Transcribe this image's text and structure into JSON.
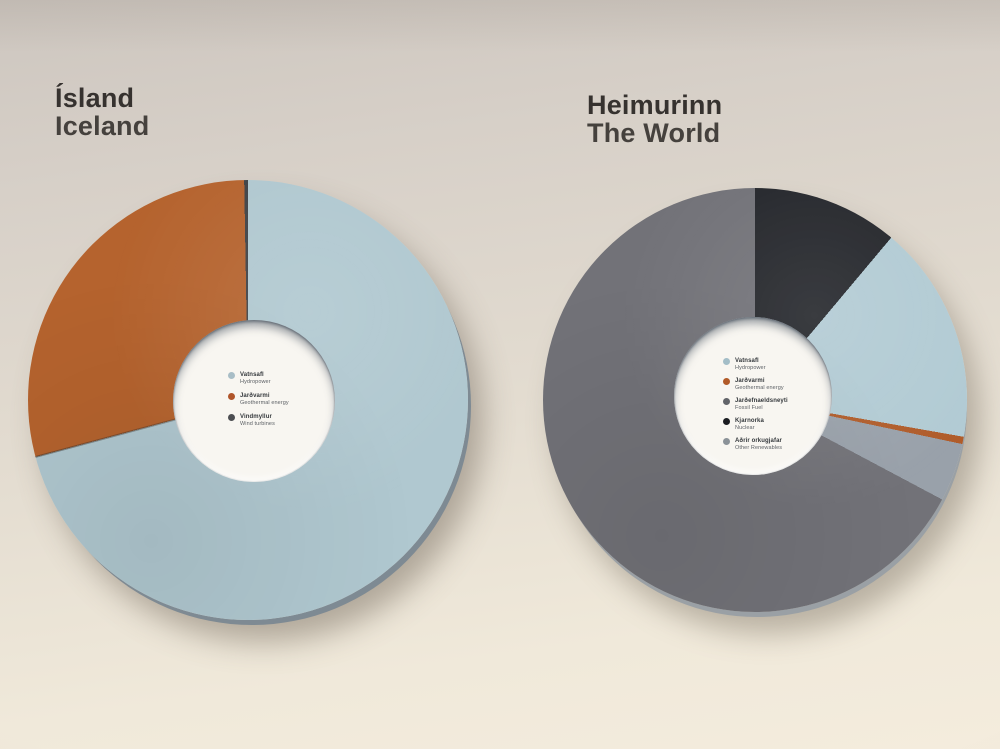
{
  "chart_data": [
    {
      "type": "pie",
      "variant": "donut",
      "title": "Ísland",
      "subtitle": "Iceland",
      "legend_position": "center-hole",
      "legend": [
        {
          "label_is": "Vatnsafl",
          "label_en": "Hydropower",
          "color": "#a8bdc6"
        },
        {
          "label_is": "Jarðvarmi",
          "label_en": "Geothermal energy",
          "color": "#b0552a"
        },
        {
          "label_is": "Vindmyllur",
          "label_en": "Wind turbines",
          "color": "#4c4e52"
        }
      ],
      "slices_clockwise_from_top": [
        {
          "label_en": "Hydropower",
          "percent": 70.8,
          "deg": 255,
          "color": "#b0c8d0"
        },
        {
          "label_en": "Geothermal energy",
          "percent": 28.9,
          "deg": 104,
          "color": "#b5632e"
        },
        {
          "label_en": "Wind turbines",
          "percent": 0.3,
          "deg": 1,
          "color": "#3f4246"
        }
      ]
    },
    {
      "type": "pie",
      "variant": "donut",
      "title": "Heimurinn",
      "subtitle": "The World",
      "legend_position": "center-hole",
      "legend": [
        {
          "label_is": "Vatnsafl",
          "label_en": "Hydropower",
          "color": "#a3bdc7"
        },
        {
          "label_is": "Jarðvarmi",
          "label_en": "Geothermal energy",
          "color": "#b15a28"
        },
        {
          "label_is": "Jarðefnaeldsneyti",
          "label_en": "Fossil Fuel",
          "color": "#626469"
        },
        {
          "label_is": "Kjarnorka",
          "label_en": "Nuclear",
          "color": "#1a1c20"
        },
        {
          "label_is": "Aðrir orkugjafar",
          "label_en": "Other Renewables",
          "color": "#8b9298"
        }
      ],
      "slices_clockwise_from_top": [
        {
          "label_en": "Nuclear",
          "percent": 11.1,
          "deg": 40,
          "color": "#24262b"
        },
        {
          "label_en": "Hydropower",
          "percent": 16.7,
          "deg": 60,
          "color": "#b2cbd4"
        },
        {
          "label_en": "Geothermal energy",
          "percent": 0.6,
          "deg": 2,
          "color": "#b05c2a"
        },
        {
          "label_en": "Other Renewables",
          "percent": 4.4,
          "deg": 16,
          "color": "#99a1aa"
        },
        {
          "label_en": "Fossil Fuel",
          "percent": 67.2,
          "deg": 242,
          "color": "#727278"
        }
      ]
    }
  ]
}
